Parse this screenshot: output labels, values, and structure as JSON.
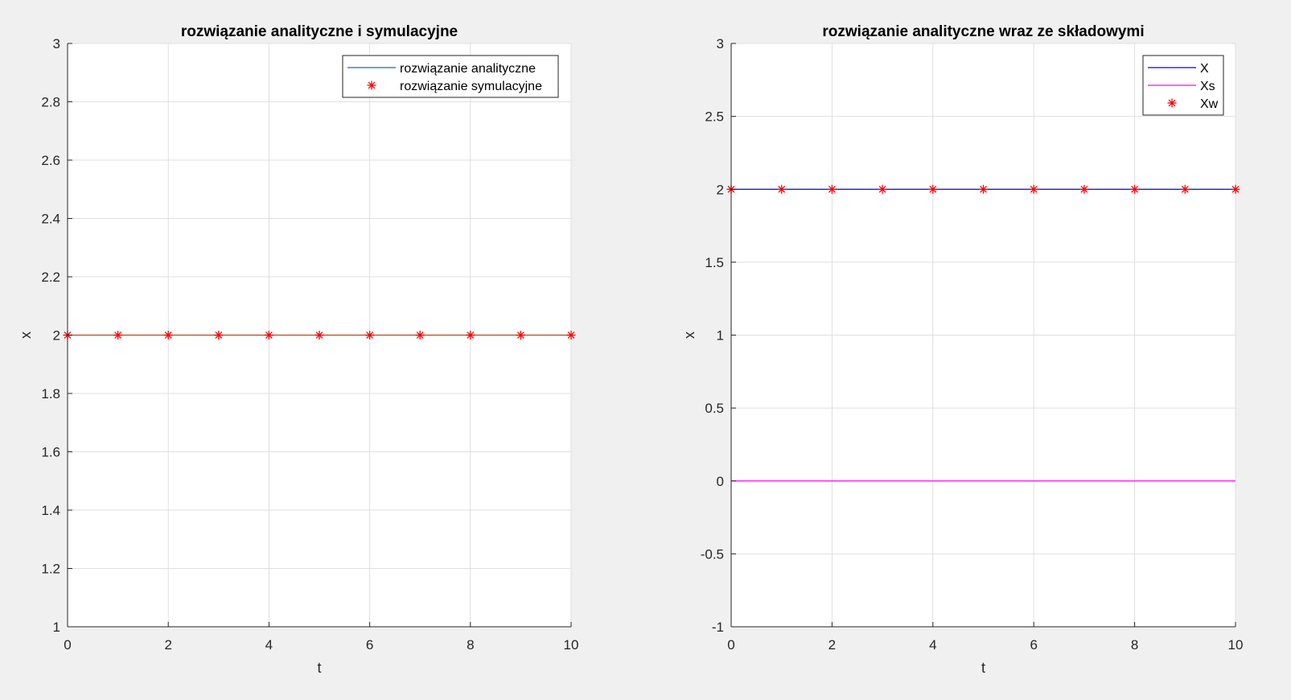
{
  "chart_data": [
    {
      "type": "line",
      "title": "rozwiązanie analityczne i symulacyjne",
      "xlabel": "t",
      "ylabel": "x",
      "xlim": [
        0,
        10
      ],
      "ylim": [
        1,
        3
      ],
      "xticks": [
        0,
        2,
        4,
        6,
        8,
        10
      ],
      "yticks": [
        1,
        1.2,
        1.4,
        1.6,
        1.8,
        2,
        2.2,
        2.4,
        2.6,
        2.8,
        3
      ],
      "xtick_labels": [
        "0",
        "2",
        "4",
        "6",
        "8",
        "10"
      ],
      "ytick_labels": [
        "1",
        "1.2",
        "1.4",
        "1.6",
        "1.8",
        "2",
        "2.2",
        "2.4",
        "2.6",
        "2.8",
        "3"
      ],
      "grid": true,
      "legend": "top-right",
      "series": [
        {
          "name": "rozwiązanie analityczne",
          "style": "line",
          "color": "#0072BD",
          "x": [
            0,
            10
          ],
          "y": [
            2,
            2
          ]
        },
        {
          "name": "rozwiązanie symulacyjne",
          "style": "marker",
          "marker": "*",
          "color": "#FF0000",
          "x": [
            0,
            1,
            2,
            3,
            4,
            5,
            6,
            7,
            8,
            9,
            10
          ],
          "y": [
            2,
            2,
            2,
            2,
            2,
            2,
            2,
            2,
            2,
            2,
            2
          ]
        }
      ],
      "overlay_line": {
        "color": "#D95319",
        "x": [
          0,
          10
        ],
        "y": [
          2,
          2
        ]
      }
    },
    {
      "type": "line",
      "title": "rozwiązanie analityczne wraz ze składowymi",
      "xlabel": "t",
      "ylabel": "x",
      "xlim": [
        0,
        10
      ],
      "ylim": [
        -1,
        3
      ],
      "xticks": [
        0,
        2,
        4,
        6,
        8,
        10
      ],
      "yticks": [
        -1,
        -0.5,
        0,
        0.5,
        1,
        1.5,
        2,
        2.5,
        3
      ],
      "xtick_labels": [
        "0",
        "2",
        "4",
        "6",
        "8",
        "10"
      ],
      "ytick_labels": [
        "-1",
        "-0.5",
        "0",
        "0.5",
        "1",
        "1.5",
        "2",
        "2.5",
        "3"
      ],
      "grid": true,
      "legend": "top-right",
      "series": [
        {
          "name": "X",
          "style": "line",
          "color": "#0000FF",
          "x": [
            0,
            10
          ],
          "y": [
            2,
            2
          ]
        },
        {
          "name": "Xs",
          "style": "line",
          "color": "#FF00FF",
          "x": [
            0,
            10
          ],
          "y": [
            0,
            0
          ]
        },
        {
          "name": "Xw",
          "style": "marker",
          "marker": "*",
          "color": "#FF0000",
          "x": [
            0,
            1,
            2,
            3,
            4,
            5,
            6,
            7,
            8,
            9,
            10
          ],
          "y": [
            2,
            2,
            2,
            2,
            2,
            2,
            2,
            2,
            2,
            2,
            2
          ]
        }
      ]
    }
  ]
}
